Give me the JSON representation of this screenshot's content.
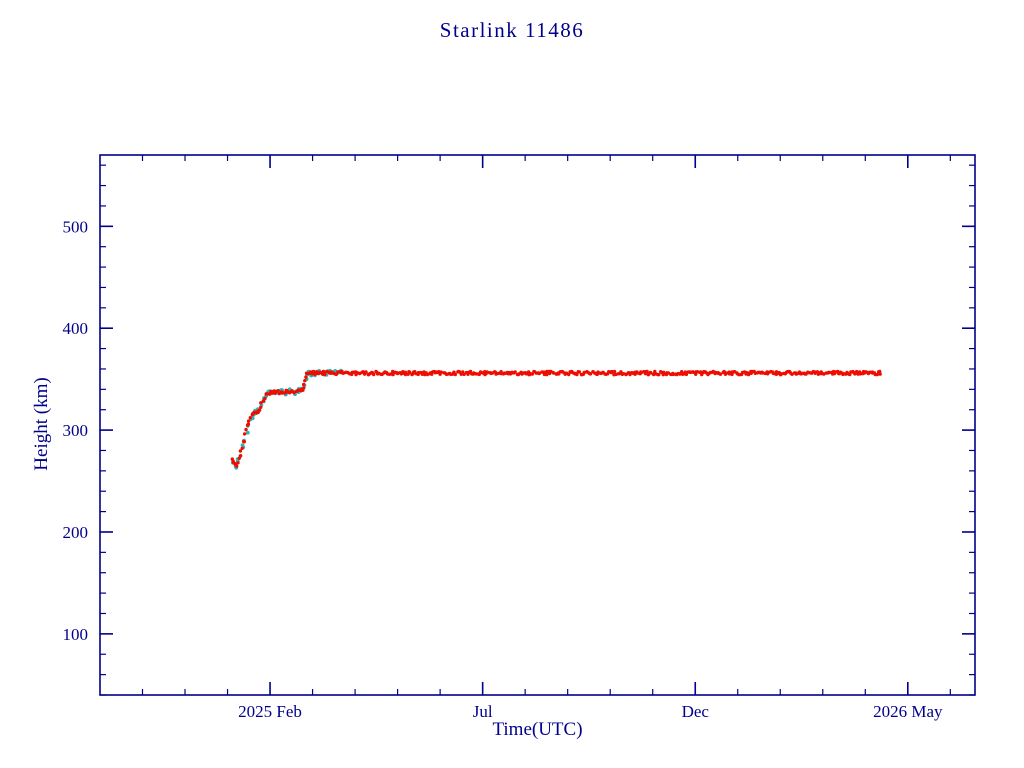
{
  "colors": {
    "frame": "#00008b",
    "label": "#00008b",
    "track_red": "#ee0d00",
    "track_cyan": "#2fb3b3",
    "background": "#ffffff"
  },
  "chart_data": {
    "type": "scatter",
    "title": "Starlink 11486",
    "xlabel": "Time(UTC)",
    "ylabel": "Height (km)",
    "xlim": [
      2024.75,
      2026.465
    ],
    "ylim": [
      40,
      570
    ],
    "grid": false,
    "legend": "none",
    "x_ticks": [
      {
        "value": 2025.0833,
        "label": "2025 Feb"
      },
      {
        "value": 2025.5,
        "label": "Jul"
      },
      {
        "value": 2025.9167,
        "label": "Dec"
      },
      {
        "value": 2026.3333,
        "label": "2026 May"
      }
    ],
    "x_minor_step": 0.0833333,
    "y_ticks": [
      {
        "value": 100,
        "label": "100"
      },
      {
        "value": 200,
        "label": "200"
      },
      {
        "value": 300,
        "label": "300"
      },
      {
        "value": 400,
        "label": "400"
      },
      {
        "value": 500,
        "label": "500"
      }
    ],
    "y_minor_step": 20,
    "series": [
      {
        "name": "ghost-track-cyan",
        "color": "#2fb3b3",
        "marker_radius": 1.9,
        "jitter": 2.6,
        "step": 0.004,
        "points": [
          [
            2025.01,
            268
          ],
          [
            2025.016,
            264
          ],
          [
            2025.022,
            270
          ],
          [
            2025.03,
            284
          ],
          [
            2025.04,
            303
          ],
          [
            2025.048,
            314
          ],
          [
            2025.056,
            318
          ],
          [
            2025.062,
            321
          ],
          [
            2025.07,
            330
          ],
          [
            2025.078,
            336
          ],
          [
            2025.1,
            337
          ],
          [
            2025.14,
            338
          ],
          [
            2025.15,
            344
          ],
          [
            2025.156,
            354
          ],
          [
            2025.165,
            356
          ],
          [
            2025.22,
            356
          ]
        ]
      },
      {
        "name": "height-track-red",
        "color": "#ee0d00",
        "marker_radius": 1.7,
        "jitter": 1.7,
        "step": 0.0025,
        "points": [
          [
            2025.008,
            273
          ],
          [
            2025.012,
            268
          ],
          [
            2025.016,
            265
          ],
          [
            2025.02,
            267
          ],
          [
            2025.026,
            278
          ],
          [
            2025.032,
            290
          ],
          [
            2025.04,
            305
          ],
          [
            2025.048,
            314
          ],
          [
            2025.052,
            317
          ],
          [
            2025.06,
            318
          ],
          [
            2025.064,
            322
          ],
          [
            2025.07,
            330
          ],
          [
            2025.076,
            335
          ],
          [
            2025.082,
            336
          ],
          [
            2025.095,
            337
          ],
          [
            2025.11,
            337
          ],
          [
            2025.14,
            338
          ],
          [
            2025.148,
            340
          ],
          [
            2025.152,
            348
          ],
          [
            2025.156,
            355
          ],
          [
            2025.165,
            356
          ],
          [
            2025.4,
            356
          ],
          [
            2025.7,
            356
          ],
          [
            2026.0,
            356
          ],
          [
            2026.28,
            356
          ]
        ]
      }
    ]
  }
}
